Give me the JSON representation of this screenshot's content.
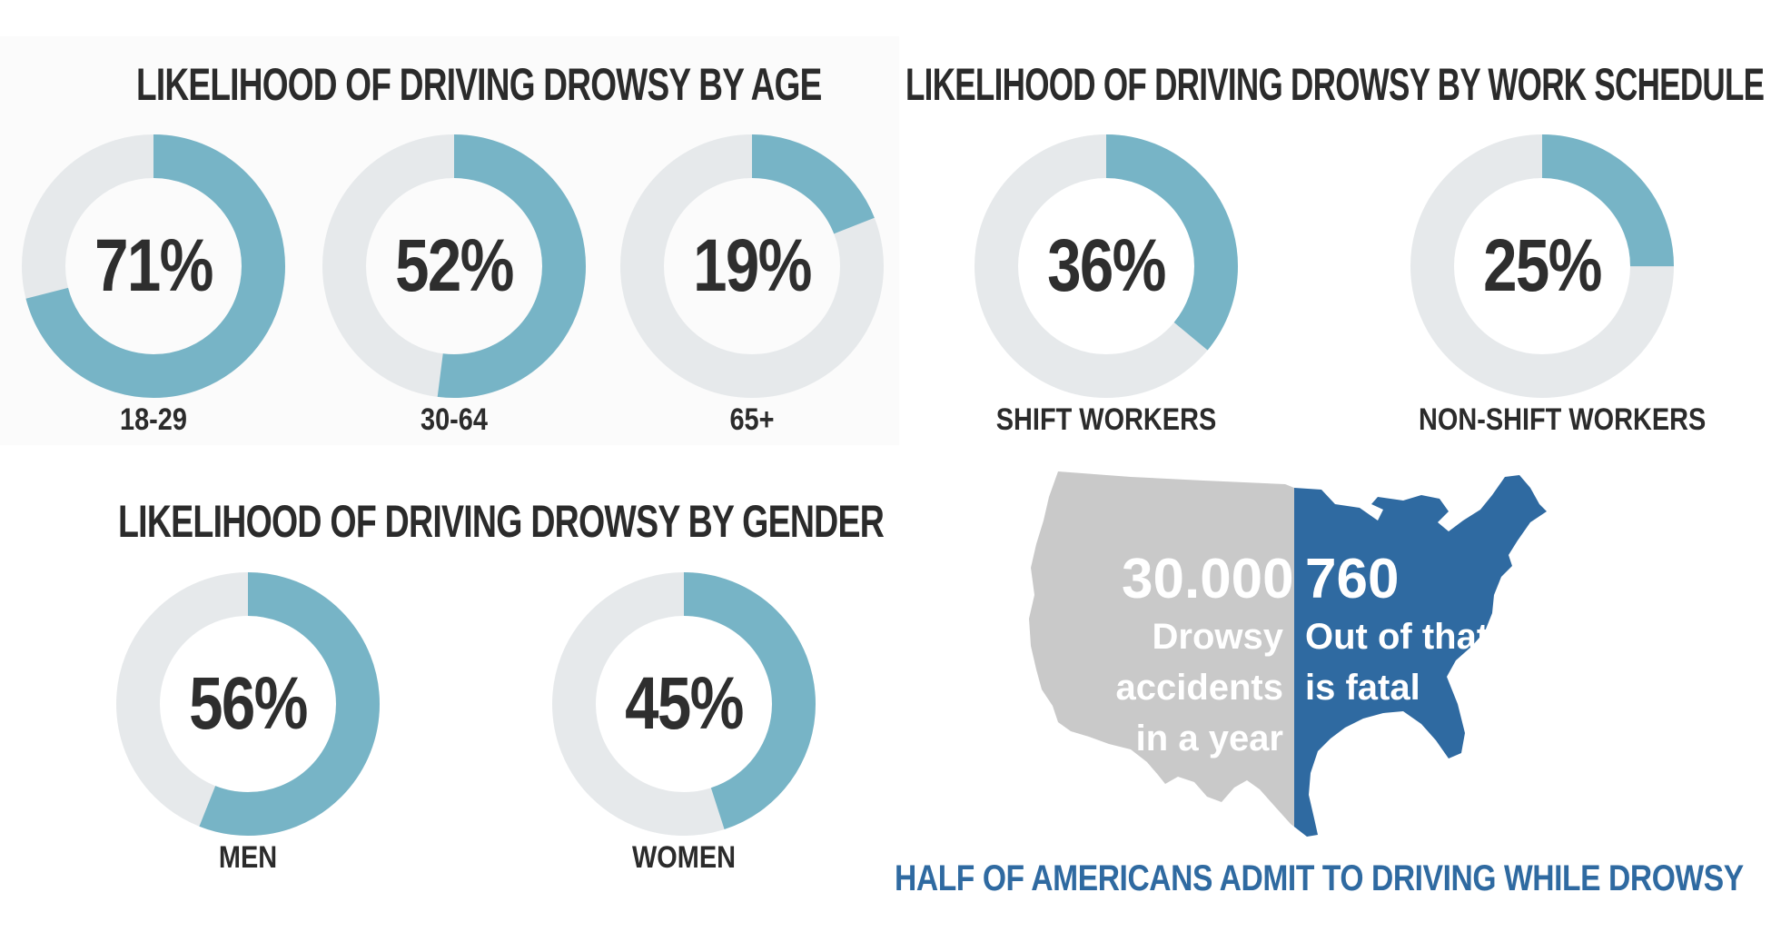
{
  "colors": {
    "accent": "#77b4c6",
    "track": "#e6e9eb",
    "text": "#2b2b2b",
    "map_gray": "#c9c9c9",
    "map_blue": "#2f6aa1",
    "footer": "#2f6aa1"
  },
  "chart_data": [
    {
      "type": "pie",
      "title": "LIKELIHOOD OF DRIVING DROWSY BY AGE",
      "categories": [
        "18-29",
        "30-64",
        "65+"
      ],
      "values": [
        71,
        52,
        19
      ],
      "labels": [
        "71%",
        "52%",
        "19%"
      ],
      "unit": "%"
    },
    {
      "type": "pie",
      "title": "LIKELIHOOD OF DRIVING DROWSY BY WORK SCHEDULE",
      "categories": [
        "SHIFT WORKERS",
        "NON-SHIFT WORKERS"
      ],
      "values": [
        36,
        25
      ],
      "labels": [
        "36%",
        "25%"
      ],
      "unit": "%"
    },
    {
      "type": "pie",
      "title": "LIKELIHOOD OF DRIVING DROWSY BY GENDER",
      "categories": [
        "MEN",
        "WOMEN"
      ],
      "values": [
        56,
        45
      ],
      "labels": [
        "56%",
        "45%"
      ],
      "unit": "%"
    }
  ],
  "map": {
    "left_number": "30.000",
    "left_lines": [
      "Drowsy",
      "accidents",
      "in a year"
    ],
    "right_number": "760",
    "right_lines": [
      "Out of that",
      "is fatal"
    ]
  },
  "footer": "HALF OF AMERICANS ADMIT TO DRIVING WHILE DROWSY"
}
